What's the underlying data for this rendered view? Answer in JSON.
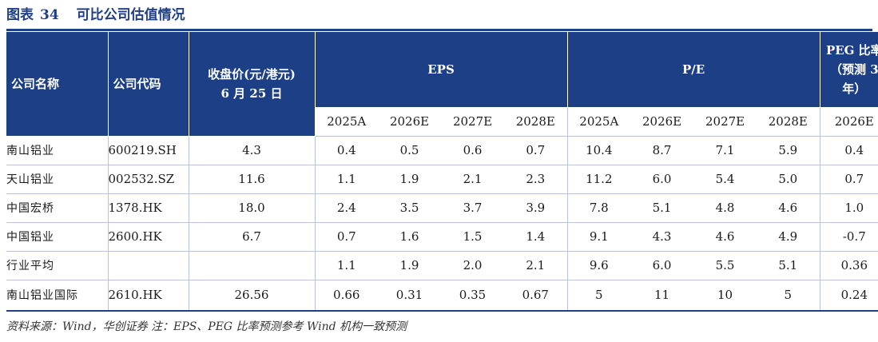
{
  "title": {
    "prefix": "图表",
    "number": "34",
    "text": "可比公司估值情况"
  },
  "header": {
    "company_name": "公司名称",
    "company_code": "公司代码",
    "price_line1": "收盘价(元/港元)",
    "price_line2": "6 月 25 日",
    "eps": "EPS",
    "pe": "P/E",
    "peg_line1": "PEG 比率",
    "peg_line2": "（预测 3",
    "peg_line3": "年）",
    "eps_years": [
      "2025A",
      "2026E",
      "2027E",
      "2028E"
    ],
    "pe_years": [
      "2025A",
      "2026E",
      "2027E",
      "2028E"
    ],
    "peg_year": "2026E"
  },
  "rows": [
    {
      "name": "南山铝业",
      "code": "600219.SH",
      "price": "4.3",
      "eps": [
        "0.4",
        "0.5",
        "0.6",
        "0.7"
      ],
      "pe": [
        "10.4",
        "8.7",
        "7.1",
        "5.9"
      ],
      "peg": "0.4"
    },
    {
      "name": "天山铝业",
      "code": "002532.SZ",
      "price": "11.6",
      "eps": [
        "1.1",
        "1.9",
        "2.1",
        "2.3"
      ],
      "pe": [
        "11.2",
        "6.0",
        "5.4",
        "5.0"
      ],
      "peg": "0.7"
    },
    {
      "name": "中国宏桥",
      "code": "1378.HK",
      "price": "18.0",
      "eps": [
        "2.4",
        "3.5",
        "3.7",
        "3.9"
      ],
      "pe": [
        "7.8",
        "5.1",
        "4.8",
        "4.6"
      ],
      "peg": "1.0"
    },
    {
      "name": "中国铝业",
      "code": "2600.HK",
      "price": "6.7",
      "eps": [
        "0.7",
        "1.6",
        "1.5",
        "1.4"
      ],
      "pe": [
        "9.1",
        "4.3",
        "4.6",
        "4.9"
      ],
      "peg": "-0.7"
    },
    {
      "name": "行业平均",
      "code": "",
      "price": "",
      "eps": [
        "1.1",
        "1.9",
        "2.0",
        "2.1"
      ],
      "pe": [
        "9.6",
        "6.0",
        "5.5",
        "5.1"
      ],
      "peg": "0.36"
    },
    {
      "name": "南山铝业国际",
      "code": "2610.HK",
      "price": "26.56",
      "eps": [
        "0.66",
        "0.31",
        "0.35",
        "0.67"
      ],
      "pe": [
        "5",
        "11",
        "10",
        "5"
      ],
      "peg": "0.24"
    }
  ],
  "source": "资料来源：Wind，华创证券 注：EPS、PEG 比率预测参考 Wind 机构一致预测",
  "colors": {
    "header_bg": "#1d3f86",
    "title": "#1f3f86",
    "rule": "#b8c4dc"
  }
}
